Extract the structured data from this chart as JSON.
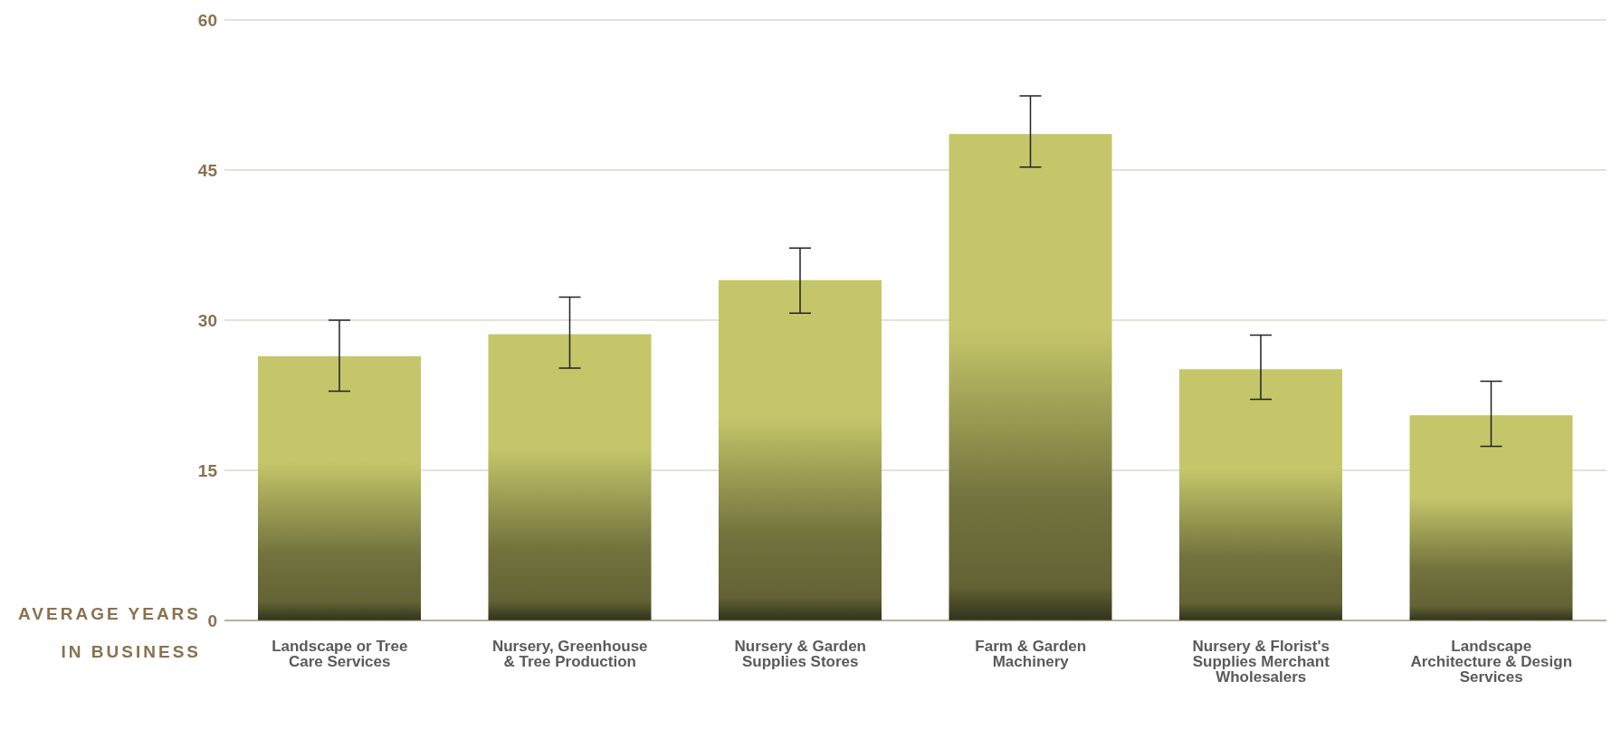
{
  "chart_data": {
    "type": "bar",
    "ylabel": "AVERAGE YEARS IN BUSINESS",
    "categories": [
      "Landscape or Tree Care Services",
      "Nursery, Greenhouse & Tree Production",
      "Nursery & Garden Supplies Stores",
      "Farm & Garden Machinery",
      "Nursery & Florist's Supplies Merchant Wholesalers",
      "Landscape Architecture & Design Services"
    ],
    "values": [
      26.4,
      28.6,
      34.0,
      48.6,
      25.1,
      20.5
    ],
    "errors": [
      [
        22.9,
        30.0
      ],
      [
        25.2,
        32.3
      ],
      [
        30.7,
        37.2
      ],
      [
        45.3,
        52.4
      ],
      [
        22.1,
        28.5
      ],
      [
        17.4,
        23.9
      ]
    ],
    "color": "#c5c66a",
    "ylim": [
      0,
      60
    ],
    "yticks": [
      0,
      15,
      30,
      45,
      60
    ],
    "grid": "y"
  }
}
